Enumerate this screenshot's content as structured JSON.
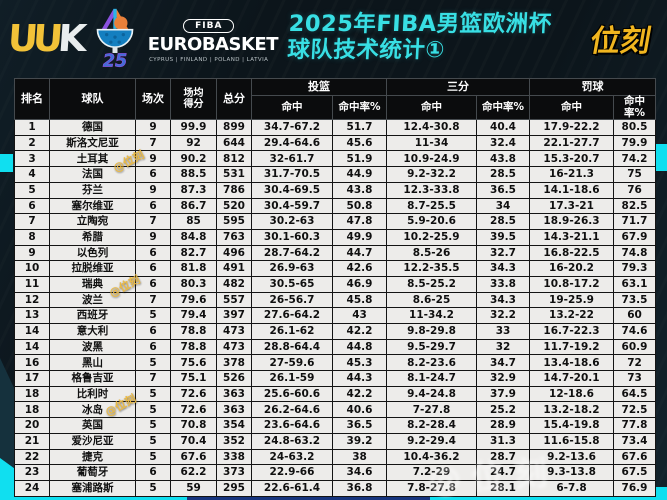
{
  "header": {
    "logo_mark_left": "UU",
    "logo_mark_right": "K",
    "trophy_year": "25",
    "fiba_label": "FIBA",
    "eurobasket_label": "EUROBASKET",
    "hosts_label": "CYPRUS | FINLAND | POLAND | LATVIA",
    "title_line1": "2025年FIBA男篮欧洲杯",
    "title_line2": "球队技术统计①",
    "brand_right": "位刻"
  },
  "watermark": {
    "text": "@位刻"
  },
  "table": {
    "headers": {
      "rank": "排名",
      "team": "球队",
      "games": "场次",
      "avg_line1": "场均",
      "avg_line2": "得分",
      "total": "总分",
      "fg_group": "投篮",
      "tp_group": "三分",
      "ft_group": "罚球",
      "made": "命中",
      "pct": "命中率%"
    }
  },
  "chart_data": {
    "type": "table",
    "title": "2025年FIBA男篮欧洲杯 球队技术统计①",
    "column_keys": [
      "rank",
      "team",
      "games",
      "avg_points",
      "total_points",
      "fg_made",
      "fg_pct",
      "three_made",
      "three_pct",
      "ft_made",
      "ft_pct"
    ],
    "column_labels": [
      "排名",
      "球队",
      "场次",
      "场均得分",
      "总分",
      "投篮命中",
      "投篮命中率%",
      "三分命中",
      "三分命中率%",
      "罚球命中",
      "罚球命中率%"
    ],
    "rows": [
      [
        "1",
        "德国",
        "9",
        "99.9",
        "899",
        "34.7-67.2",
        "51.7",
        "12.4-30.8",
        "40.4",
        "17.9-22.2",
        "80.5"
      ],
      [
        "2",
        "斯洛文尼亚",
        "7",
        "92",
        "644",
        "29.4-64.6",
        "45.6",
        "11-34",
        "32.4",
        "22.1-27.7",
        "79.9"
      ],
      [
        "3",
        "土耳其",
        "9",
        "90.2",
        "812",
        "32-61.7",
        "51.9",
        "10.9-24.9",
        "43.8",
        "15.3-20.7",
        "74.2"
      ],
      [
        "4",
        "法国",
        "6",
        "88.5",
        "531",
        "31.7-70.5",
        "44.9",
        "9.2-32.2",
        "28.5",
        "16-21.3",
        "75"
      ],
      [
        "5",
        "芬兰",
        "9",
        "87.3",
        "786",
        "30.4-69.5",
        "43.8",
        "12.3-33.8",
        "36.5",
        "14.1-18.6",
        "76"
      ],
      [
        "6",
        "塞尔维亚",
        "6",
        "86.7",
        "520",
        "30.4-59.7",
        "50.8",
        "8.7-25.5",
        "34",
        "17.3-21",
        "82.5"
      ],
      [
        "7",
        "立陶宛",
        "7",
        "85",
        "595",
        "30.2-63",
        "47.8",
        "5.9-20.6",
        "28.5",
        "18.9-26.3",
        "71.7"
      ],
      [
        "8",
        "希腊",
        "9",
        "84.8",
        "763",
        "30.1-60.3",
        "49.9",
        "10.2-25.9",
        "39.5",
        "14.3-21.1",
        "67.9"
      ],
      [
        "9",
        "以色列",
        "6",
        "82.7",
        "496",
        "28.7-64.2",
        "44.7",
        "8.5-26",
        "32.7",
        "16.8-22.5",
        "74.8"
      ],
      [
        "10",
        "拉脱维亚",
        "6",
        "81.8",
        "491",
        "26.9-63",
        "42.6",
        "12.2-35.5",
        "34.3",
        "16-20.2",
        "79.3"
      ],
      [
        "11",
        "瑞典",
        "6",
        "80.3",
        "482",
        "30.5-65",
        "46.9",
        "8.5-25.2",
        "33.8",
        "10.8-17.2",
        "63.1"
      ],
      [
        "12",
        "波兰",
        "7",
        "79.6",
        "557",
        "26-56.7",
        "45.8",
        "8.6-25",
        "34.3",
        "19-25.9",
        "73.5"
      ],
      [
        "13",
        "西班牙",
        "5",
        "79.4",
        "397",
        "27.6-64.2",
        "43",
        "11-34.2",
        "32.2",
        "13.2-22",
        "60"
      ],
      [
        "14",
        "意大利",
        "6",
        "78.8",
        "473",
        "26.1-62",
        "42.2",
        "9.8-29.8",
        "33",
        "16.7-22.3",
        "74.6"
      ],
      [
        "14",
        "波黑",
        "6",
        "78.8",
        "473",
        "28.8-64.4",
        "44.8",
        "9.5-29.7",
        "32",
        "11.7-19.2",
        "60.9"
      ],
      [
        "16",
        "黑山",
        "5",
        "75.6",
        "378",
        "27-59.6",
        "45.3",
        "8.2-23.6",
        "34.7",
        "13.4-18.6",
        "72"
      ],
      [
        "17",
        "格鲁吉亚",
        "7",
        "75.1",
        "526",
        "26.1-59",
        "44.3",
        "8.1-24.7",
        "32.9",
        "14.7-20.1",
        "73"
      ],
      [
        "18",
        "比利时",
        "5",
        "72.6",
        "363",
        "25.6-60.6",
        "42.2",
        "9.4-24.8",
        "37.9",
        "12-18.6",
        "64.5"
      ],
      [
        "18",
        "冰岛",
        "5",
        "72.6",
        "363",
        "26.2-64.6",
        "40.6",
        "7-27.8",
        "25.2",
        "13.2-18.2",
        "72.5"
      ],
      [
        "20",
        "英国",
        "5",
        "70.8",
        "354",
        "23.6-64.6",
        "36.5",
        "8.2-28.4",
        "28.9",
        "15.4-19.8",
        "77.8"
      ],
      [
        "21",
        "爱沙尼亚",
        "5",
        "70.4",
        "352",
        "24.8-63.2",
        "39.2",
        "9.2-29.4",
        "31.3",
        "11.6-15.8",
        "73.4"
      ],
      [
        "22",
        "捷克",
        "5",
        "67.6",
        "338",
        "24-63.2",
        "38",
        "10.4-36.2",
        "28.7",
        "9.2-13.6",
        "67.6"
      ],
      [
        "23",
        "葡萄牙",
        "6",
        "62.2",
        "373",
        "22.9-66",
        "34.6",
        "7.2-29",
        "24.7",
        "9.3-13.8",
        "67.5"
      ],
      [
        "24",
        "塞浦路斯",
        "5",
        "59",
        "295",
        "22.6-61.4",
        "36.8",
        "7.8-27.8",
        "28.1",
        "6-7.8",
        "76.9"
      ]
    ]
  },
  "colors": {
    "background": "#0c151b",
    "title_cyan": "#38dfe4",
    "brand_gold": "#f0b51f",
    "accent_cyan": "#10dff0",
    "footer_blue": "#17357e",
    "header_row_bg": "#0b0c0d",
    "body_row_bg": "#edecea",
    "watermark_gold": "#ebb83c"
  }
}
